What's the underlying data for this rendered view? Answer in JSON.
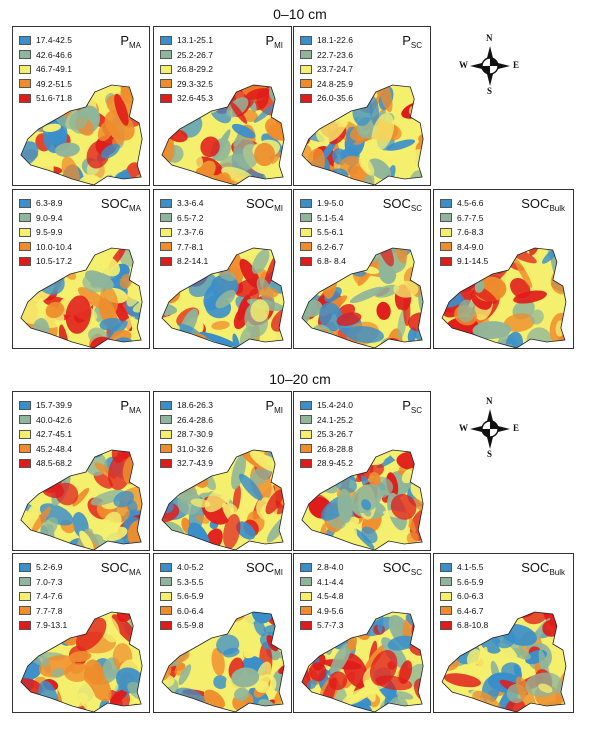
{
  "sections": [
    {
      "title": "0–10 cm",
      "panels": [
        {
          "name": "p-ma",
          "label": "P",
          "sub": "MA",
          "legend": [
            "17.4-42.5",
            "42.6-46.6",
            "46.7-49.1",
            "49.2-51.5",
            "51.6-71.8"
          ]
        },
        {
          "name": "p-mi",
          "label": "P",
          "sub": "MI",
          "legend": [
            "13.1-25.1",
            "25.2-26.7",
            "26.8-29.2",
            "29.3-32.5",
            "32.6-45.3"
          ]
        },
        {
          "name": "p-sc",
          "label": "P",
          "sub": "SC",
          "legend": [
            "18.1-22.6",
            "22.7-23.6",
            "23.7-24.7",
            "24.8-25.9",
            "26.0-35.6"
          ]
        },
        {
          "name": "soc-ma",
          "label": "SOC",
          "sub": "MA",
          "legend": [
            "6.3-8.9",
            "9.0-9.4",
            "9.5-9.9",
            "10.0-10.4",
            "10.5-17.2"
          ]
        },
        {
          "name": "soc-mi",
          "label": "SOC",
          "sub": "MI",
          "legend": [
            "3.3-6.4",
            "6.5-7.2",
            "7.3-7.6",
            "7.7-8.1",
            "8.2-14.1"
          ]
        },
        {
          "name": "soc-sc",
          "label": "SOC",
          "sub": "SC",
          "legend": [
            "1.9-5.0",
            "5.1-5.4",
            "5.5-6.1",
            "6.2-6.7",
            "6.8- 8.4"
          ]
        },
        {
          "name": "soc-bulk",
          "label": "SOC",
          "sub": "Bulk",
          "legend": [
            "4.5-6.6",
            "6.7-7.5",
            "7.6-8.3",
            "8.4-9.0",
            "9.1-14.5"
          ]
        }
      ]
    },
    {
      "title": "10–20 cm",
      "panels": [
        {
          "name": "p-ma",
          "label": "P",
          "sub": "MA",
          "legend": [
            "15.7-39.9",
            "40.0-42.6",
            "42.7-45.1",
            "45.2-48.4",
            "48.5-68.2"
          ]
        },
        {
          "name": "p-mi",
          "label": "P",
          "sub": "MI",
          "legend": [
            "18.6-26.3",
            "26.4-28.6",
            "28.7-30.9",
            "31.0-32.6",
            "32.7-43.9"
          ]
        },
        {
          "name": "p-sc",
          "label": "P",
          "sub": "SC",
          "legend": [
            "15.4-24.0",
            "24.1-25.2",
            "25.3-26.7",
            "26.8-28.8",
            "28.9-45.2"
          ]
        },
        {
          "name": "soc-ma",
          "label": "SOC",
          "sub": "MA",
          "legend": [
            "5.2-6.9",
            "7.0-7.3",
            "7.4-7.6",
            "7.7-7.8",
            "7.9-13.1"
          ]
        },
        {
          "name": "soc-mi",
          "label": "SOC",
          "sub": "MI",
          "legend": [
            "4.0-5.2",
            "5.3-5.5",
            "5.6-5.9",
            "6.0-6.4",
            "6.5-9.8"
          ]
        },
        {
          "name": "soc-sc",
          "label": "SOC",
          "sub": "SC",
          "legend": [
            "2.8-4.0",
            "4.1-4.4",
            "4.5-4.8",
            "4.9-5.6",
            "5.7-7.3"
          ]
        },
        {
          "name": "soc-bulk",
          "label": "SOC",
          "sub": "Bulk",
          "legend": [
            "4.1-5.5",
            "5.6-5.9",
            "6.0-6.3",
            "6.4-6.7",
            "6.8-10.8"
          ]
        }
      ]
    }
  ],
  "compass": {
    "n": "N",
    "s": "S",
    "e": "E",
    "w": "W"
  },
  "class_colors": [
    "#3a8fcb",
    "#8fb59a",
    "#f5ef6e",
    "#ef8c2c",
    "#e01b1b"
  ]
}
